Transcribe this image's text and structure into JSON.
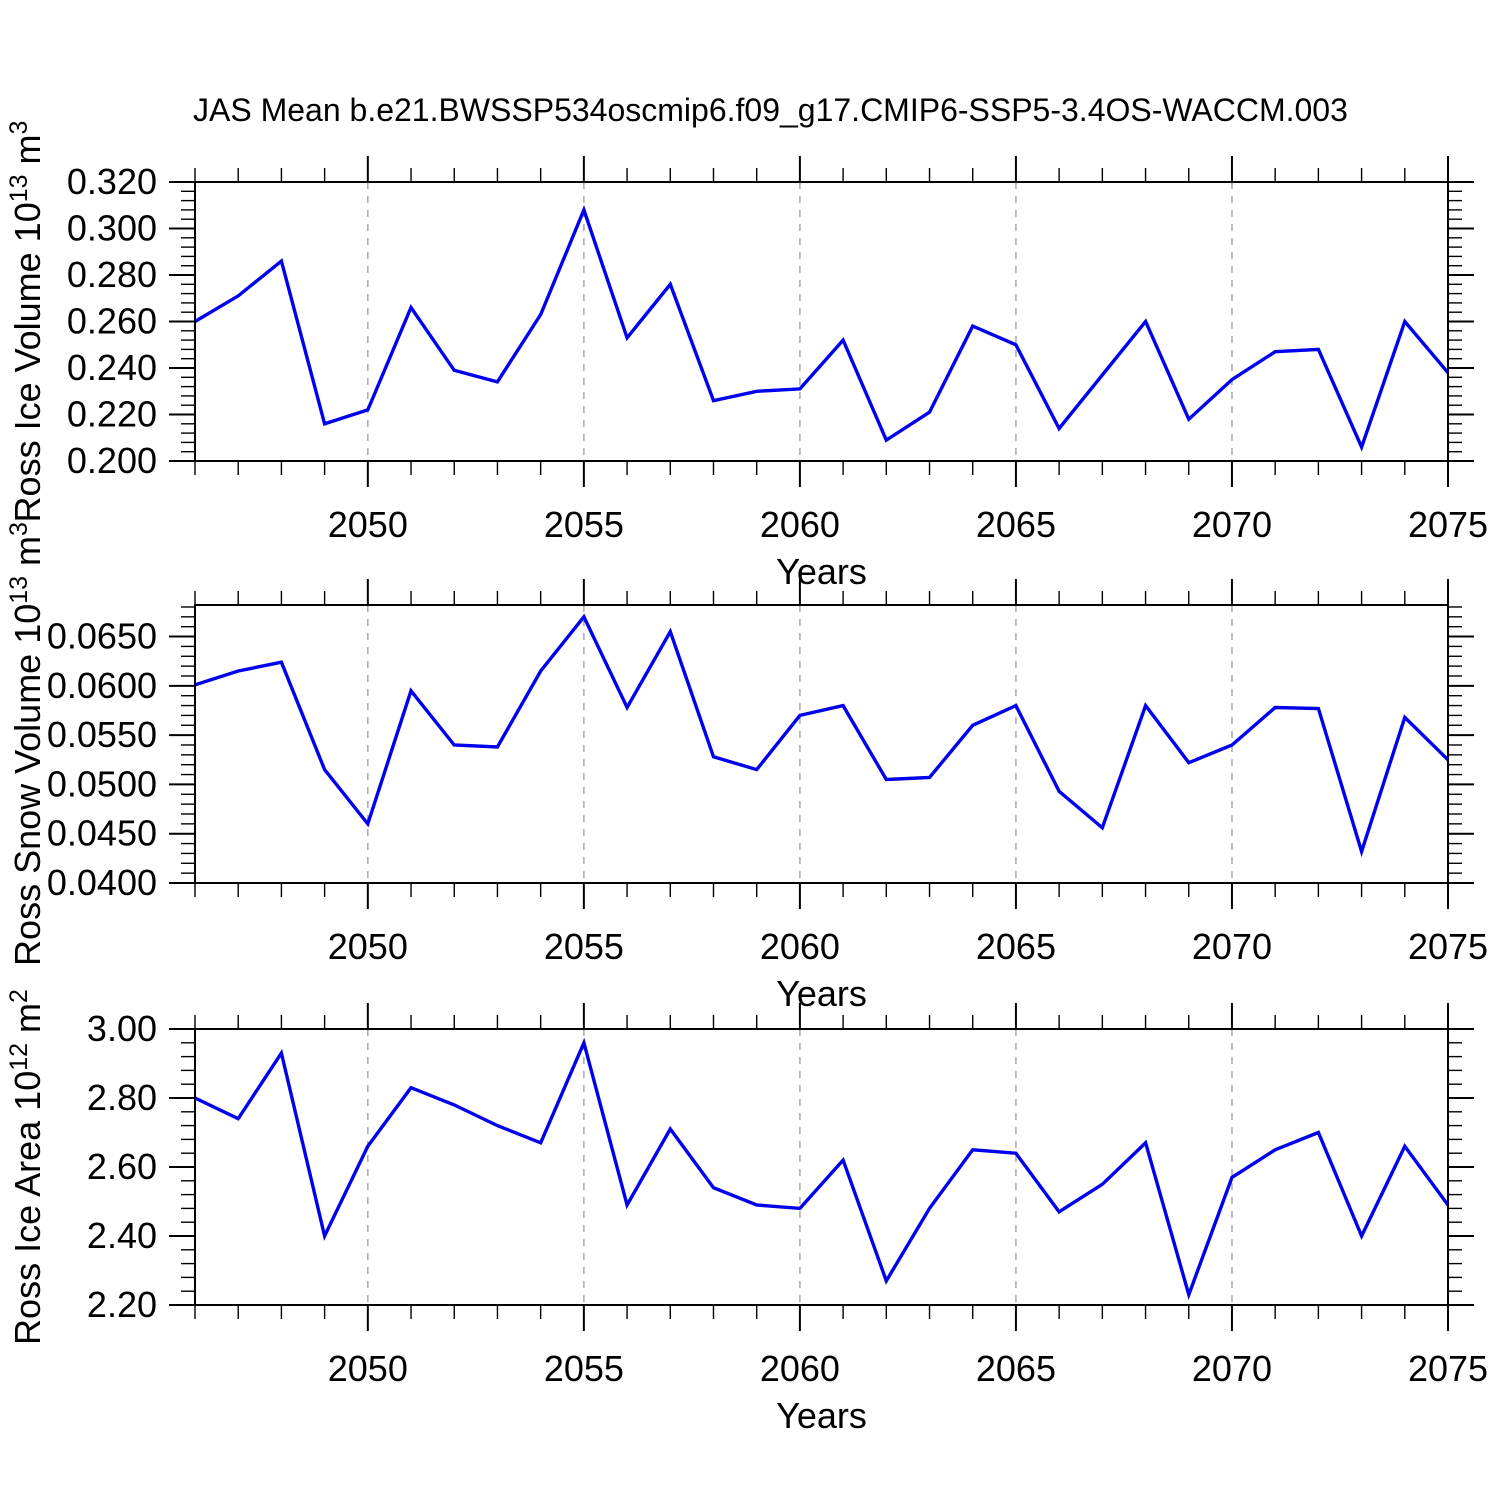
{
  "title": "JAS Mean b.e21.BWSSP534oscmip6.f09_g17.CMIP6-SSP5-3.4OS-WACCM.003",
  "line_color": "#0000ee",
  "grid_color": "#a8a8a8",
  "axis_color": "#000000",
  "chart_data": [
    {
      "type": "line",
      "ylabel": "Ross Ice Volume 10^13 m^3",
      "ylabel_parts": [
        {
          "text": "Ross Ice Volume 10",
          "sup": false
        },
        {
          "text": "13",
          "sup": true
        },
        {
          "text": " m",
          "sup": false
        },
        {
          "text": "3",
          "sup": true
        }
      ],
      "xlabel": "Years",
      "ylim": [
        0.2,
        0.32
      ],
      "ytick_values": [
        0.2,
        0.22,
        0.24,
        0.26,
        0.28,
        0.3,
        0.32
      ],
      "ytick_labels": [
        "0.200",
        "0.220",
        "0.240",
        "0.260",
        "0.280",
        "0.300",
        "0.320"
      ],
      "y_minor_step": 0.004,
      "x_major_ticks": [
        2050,
        2055,
        2060,
        2065,
        2070,
        2075
      ],
      "x_major_tick_labels": [
        "2050",
        "2055",
        "2060",
        "2065",
        "2070",
        "2075"
      ],
      "x": [
        2046,
        2047,
        2048,
        2049,
        2050,
        2051,
        2052,
        2053,
        2054,
        2055,
        2056,
        2057,
        2058,
        2059,
        2060,
        2061,
        2062,
        2063,
        2064,
        2065,
        2066,
        2067,
        2068,
        2069,
        2070,
        2071,
        2072,
        2073,
        2074,
        2075
      ],
      "values": [
        0.26,
        0.271,
        0.286,
        0.216,
        0.222,
        0.266,
        0.239,
        0.234,
        0.263,
        0.308,
        0.253,
        0.276,
        0.226,
        0.23,
        0.231,
        0.252,
        0.209,
        0.221,
        0.258,
        0.25,
        0.214,
        0.237,
        0.26,
        0.218,
        0.235,
        0.247,
        0.248,
        0.206,
        0.26,
        0.238
      ]
    },
    {
      "type": "line",
      "ylabel": "Ross Snow Volume 10^13 m^3",
      "ylabel_parts": [
        {
          "text": "Ross Snow Volume 10",
          "sup": false
        },
        {
          "text": "13",
          "sup": true
        },
        {
          "text": " m",
          "sup": false
        },
        {
          "text": "3",
          "sup": true
        }
      ],
      "xlabel": "Years",
      "ylim": [
        0.04,
        0.0682
      ],
      "ytick_values": [
        0.04,
        0.045,
        0.05,
        0.055,
        0.06,
        0.065
      ],
      "ytick_labels": [
        "0.0400",
        "0.0450",
        "0.0500",
        "0.0550",
        "0.0600",
        "0.0650"
      ],
      "y_minor_step": 0.001,
      "x_major_ticks": [
        2050,
        2055,
        2060,
        2065,
        2070,
        2075
      ],
      "x_major_tick_labels": [
        "2050",
        "2055",
        "2060",
        "2065",
        "2070",
        "2075"
      ],
      "x": [
        2046,
        2047,
        2048,
        2049,
        2050,
        2051,
        2052,
        2053,
        2054,
        2055,
        2056,
        2057,
        2058,
        2059,
        2060,
        2061,
        2062,
        2063,
        2064,
        2065,
        2066,
        2067,
        2068,
        2069,
        2070,
        2071,
        2072,
        2073,
        2074,
        2075
      ],
      "values": [
        0.0601,
        0.0615,
        0.0624,
        0.0515,
        0.046,
        0.0595,
        0.054,
        0.0538,
        0.0615,
        0.067,
        0.0578,
        0.0655,
        0.0528,
        0.0515,
        0.057,
        0.058,
        0.0505,
        0.0507,
        0.056,
        0.058,
        0.0493,
        0.0456,
        0.058,
        0.0522,
        0.054,
        0.0578,
        0.0577,
        0.0432,
        0.0568,
        0.0525
      ]
    },
    {
      "type": "line",
      "ylabel": "Ross Ice Area 10^12 m^2",
      "ylabel_parts": [
        {
          "text": "Ross Ice Area 10",
          "sup": false
        },
        {
          "text": "12",
          "sup": true
        },
        {
          "text": " m",
          "sup": false
        },
        {
          "text": "2",
          "sup": true
        }
      ],
      "xlabel": "Years",
      "ylim": [
        2.2,
        3.0
      ],
      "ytick_values": [
        2.2,
        2.4,
        2.6,
        2.8,
        3.0
      ],
      "ytick_labels": [
        "2.20",
        "2.40",
        "2.60",
        "2.80",
        "3.00"
      ],
      "y_minor_step": 0.04,
      "x_major_ticks": [
        2050,
        2055,
        2060,
        2065,
        2070,
        2075
      ],
      "x_major_tick_labels": [
        "2050",
        "2055",
        "2060",
        "2065",
        "2070",
        "2075"
      ],
      "x": [
        2046,
        2047,
        2048,
        2049,
        2050,
        2051,
        2052,
        2053,
        2054,
        2055,
        2056,
        2057,
        2058,
        2059,
        2060,
        2061,
        2062,
        2063,
        2064,
        2065,
        2066,
        2067,
        2068,
        2069,
        2070,
        2071,
        2072,
        2073,
        2074,
        2075
      ],
      "values": [
        2.8,
        2.74,
        2.93,
        2.4,
        2.66,
        2.83,
        2.78,
        2.72,
        2.67,
        2.96,
        2.49,
        2.71,
        2.54,
        2.49,
        2.48,
        2.62,
        2.27,
        2.48,
        2.65,
        2.64,
        2.47,
        2.55,
        2.67,
        2.23,
        2.57,
        2.65,
        2.7,
        2.4,
        2.66,
        2.49
      ]
    }
  ]
}
